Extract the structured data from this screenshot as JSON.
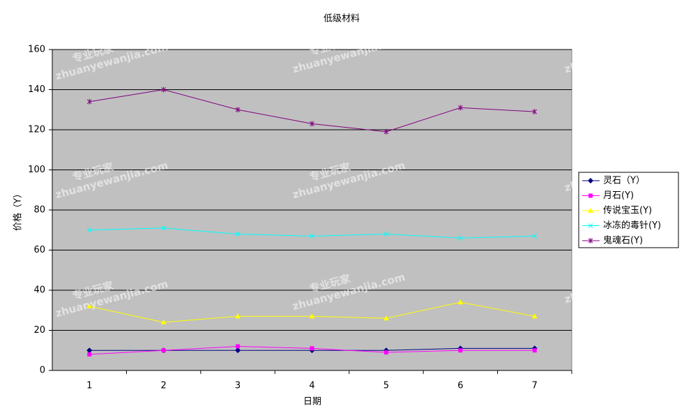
{
  "chart_data": {
    "type": "line",
    "title": "低级材料",
    "x_label": "日期",
    "y_label": "价格（Y）",
    "categories": [
      1,
      2,
      3,
      4,
      5,
      6,
      7
    ],
    "series": [
      {
        "name": "灵石（Y）",
        "color": "#000080",
        "marker": "diamond",
        "values": [
          10,
          10,
          10,
          10,
          10,
          11,
          11
        ]
      },
      {
        "name": "月石(Y)",
        "color": "#ff00ff",
        "marker": "square",
        "values": [
          8,
          10,
          12,
          11,
          9,
          10,
          10
        ]
      },
      {
        "name": "传说宝玉(Y)",
        "color": "#ffff00",
        "marker": "triangle",
        "values": [
          32,
          24,
          27,
          27,
          26,
          34,
          27
        ]
      },
      {
        "name": "冰冻的毒针(Y)",
        "color": "#00ffff",
        "marker": "x",
        "values": [
          70,
          71,
          68,
          67,
          68,
          66,
          67
        ]
      },
      {
        "name": "鬼魂石(Y)",
        "color": "#800080",
        "marker": "star",
        "values": [
          134,
          140,
          130,
          123,
          119,
          131,
          129
        ]
      }
    ],
    "ylim": [
      0,
      160
    ],
    "yticks": [
      0,
      20,
      40,
      60,
      80,
      100,
      120,
      140,
      160
    ],
    "grid": true,
    "legend": "right",
    "watermark": [
      "专业玩家",
      "zhuanyewanjia.com"
    ]
  }
}
